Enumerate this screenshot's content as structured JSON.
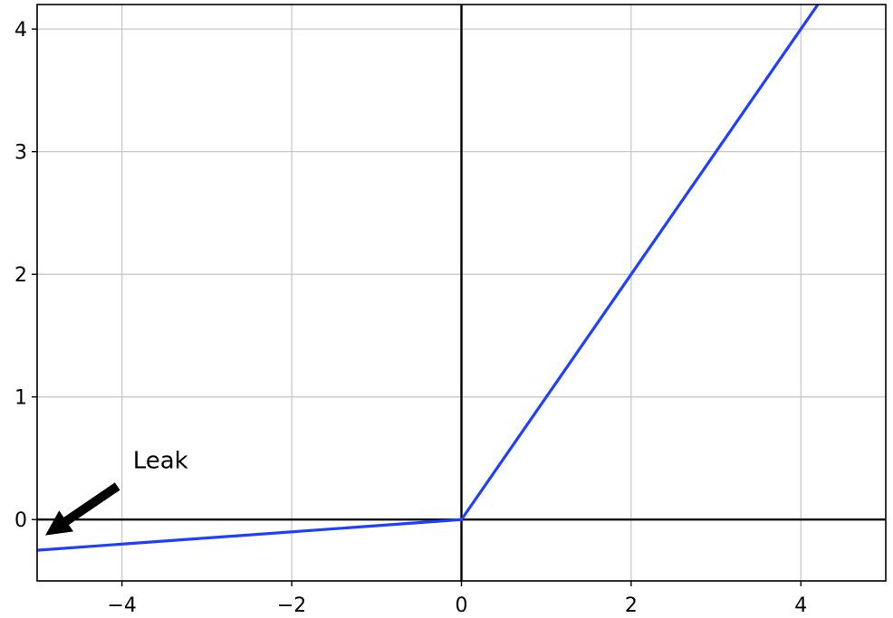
{
  "chart_data": {
    "type": "line",
    "title": "",
    "xlabel": "",
    "ylabel": "",
    "xlim": [
      -5,
      5
    ],
    "ylim": [
      -0.5,
      4.2
    ],
    "grid": true,
    "x_ticks": [
      -4,
      -2,
      0,
      2,
      4
    ],
    "x_tick_labels": [
      "−4",
      "−2",
      "0",
      "2",
      "4"
    ],
    "y_ticks": [
      0,
      1,
      2,
      3,
      4
    ],
    "y_tick_labels": [
      "0",
      "1",
      "2",
      "3",
      "4"
    ],
    "series": [
      {
        "x": [
          -5,
          0,
          4.2
        ],
        "y": [
          -0.25,
          0,
          4.2
        ],
        "color": "#1f3fff"
      }
    ],
    "reference_lines": {
      "horizontal_at_y": 0,
      "vertical_at_x": 0,
      "color": "#000000"
    },
    "annotation": {
      "text": "Leak",
      "arrow_points_to": [
        -5,
        -0.15
      ],
      "text_at": [
        -4,
        0.5
      ]
    }
  },
  "colors": {
    "series": "#1f3fff",
    "grid": "#c8c8c8",
    "axes": "#000000"
  }
}
